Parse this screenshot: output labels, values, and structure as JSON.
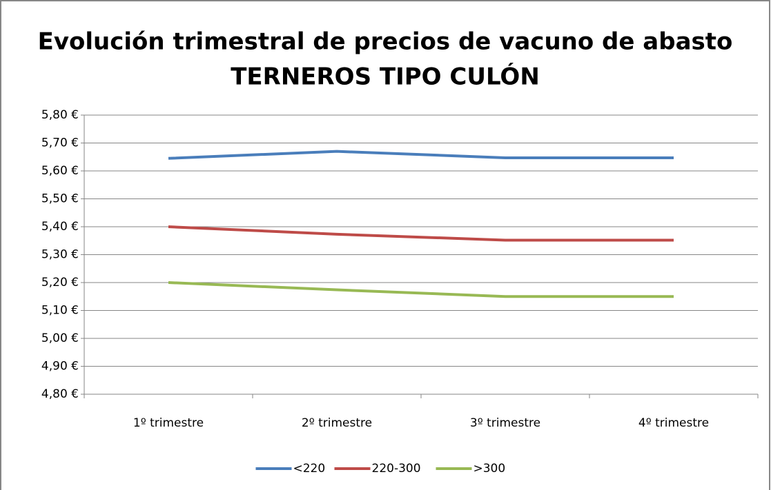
{
  "chart_data": {
    "type": "line",
    "title": [
      "Evolución trimestral  de precios de vacuno de abasto",
      "TERNEROS TIPO CULÓN"
    ],
    "categories": [
      "1º trimestre",
      "2º trimestre",
      "3º trimestre",
      "4º trimestre"
    ],
    "series": [
      {
        "name": "<220",
        "color": "#4a7ebb",
        "values": [
          5.645,
          5.67,
          5.647,
          5.647
        ]
      },
      {
        "name": "220-300",
        "color": "#be4b48",
        "values": [
          5.4,
          5.373,
          5.352,
          5.352
        ]
      },
      {
        "name": ">300",
        "color": "#98b954",
        "values": [
          5.2,
          5.174,
          5.15,
          5.15
        ]
      }
    ],
    "ylim": [
      4.8,
      5.8
    ],
    "yticks": [
      {
        "value": 4.8,
        "label": "4,80 €"
      },
      {
        "value": 4.9,
        "label": "4,90 €"
      },
      {
        "value": 5.0,
        "label": "5,00 €"
      },
      {
        "value": 5.1,
        "label": "5,10 €"
      },
      {
        "value": 5.2,
        "label": "5,20 €"
      },
      {
        "value": 5.3,
        "label": "5,30 €"
      },
      {
        "value": 5.4,
        "label": "5,40 €"
      },
      {
        "value": 5.5,
        "label": "5,50 €"
      },
      {
        "value": 5.6,
        "label": "5,60 €"
      },
      {
        "value": 5.7,
        "label": "5,70 €"
      },
      {
        "value": 5.8,
        "label": "5,80 €"
      }
    ],
    "grid": true,
    "legend": "bottom"
  }
}
